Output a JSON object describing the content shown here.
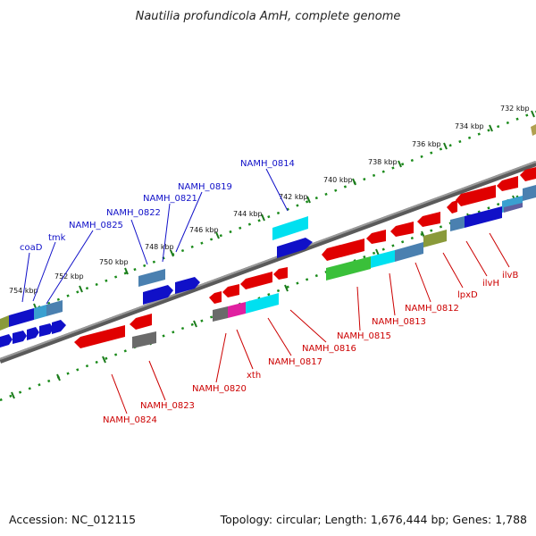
{
  "title": "Nautilia profundicola AmH, complete genome",
  "footer": {
    "accession": "Accession: NC_012115",
    "summary": "Topology: circular; Length: 1,676,444 bp; Genes: 1,788"
  },
  "colors": {
    "backbone": "#7a7a7a",
    "dots": "#1a8a1a",
    "forward_label": "#1010c8",
    "reverse_label": "#cc0000"
  },
  "ticks": [
    "732 kbp",
    "734 kbp",
    "736 kbp",
    "738 kbp",
    "740 kbp",
    "742 kbp",
    "744 kbp",
    "746 kbp",
    "748 kbp",
    "750 kbp",
    "752 kbp",
    "754 kbp"
  ],
  "forward_labels": [
    "coaD",
    "tmk",
    "NAMH_0825",
    "NAMH_0822",
    "NAMH_0821",
    "NAMH_0819",
    "NAMH_0814"
  ],
  "reverse_labels": [
    "NAMH_0824",
    "NAMH_0823",
    "NAMH_0820",
    "xth",
    "NAMH_0817",
    "NAMH_0816",
    "NAMH_0815",
    "NAMH_0813",
    "NAMH_0812",
    "lpxD",
    "ilvH",
    "ilvB"
  ]
}
